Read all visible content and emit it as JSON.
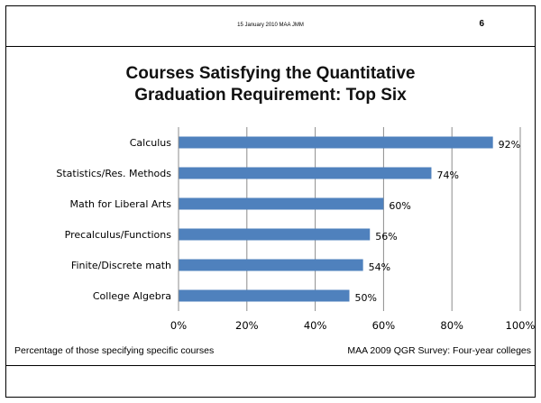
{
  "header": {
    "date": "15 January 2010 MAA JMM",
    "page_number": "6"
  },
  "chart_data": {
    "type": "bar",
    "orientation": "horizontal",
    "title": "Courses Satisfying the Quantitative Graduation Requirement: Top Six",
    "title_lines": [
      "Courses Satisfying the Quantitative",
      "Graduation Requirement: Top Six"
    ],
    "categories": [
      "Calculus",
      "Statistics/Res. Methods",
      "Math for Liberal Arts",
      "Precalculus/Functions",
      "Finite/Discrete math",
      "College Algebra"
    ],
    "values": [
      92,
      74,
      60,
      56,
      54,
      50
    ],
    "data_labels": [
      "92%",
      "74%",
      "60%",
      "56%",
      "54%",
      "50%"
    ],
    "x_ticks": [
      "0%",
      "20%",
      "40%",
      "60%",
      "80%",
      "100%"
    ],
    "xlim": [
      0,
      100
    ],
    "grid": true,
    "bar_color": "#4f81bd",
    "xlabel": "Percentage of those specifying specific courses",
    "source": "MAA 2009 QGR Survey: Four-year colleges"
  }
}
